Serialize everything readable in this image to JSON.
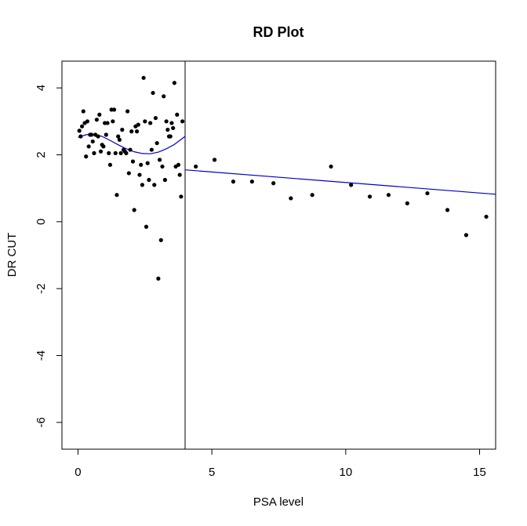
{
  "chart_data": {
    "type": "scatter",
    "title": "RD Plot",
    "xlabel": "PSA level",
    "ylabel": "DR CUT",
    "xlim": [
      -0.6,
      15.6
    ],
    "ylim": [
      -6.8,
      4.8
    ],
    "xticks": [
      0,
      5,
      10,
      15
    ],
    "yticks": [
      4,
      2,
      0,
      -2,
      -4,
      -6
    ],
    "cutoff": 4,
    "grid": false,
    "colors": {
      "points": "#000000",
      "fit": "#0000cc",
      "cutoff_line": "#000000"
    },
    "points": [
      [
        0.05,
        2.72
      ],
      [
        0.1,
        2.55
      ],
      [
        0.15,
        2.85
      ],
      [
        0.2,
        3.3
      ],
      [
        0.25,
        2.95
      ],
      [
        0.3,
        1.95
      ],
      [
        0.35,
        3.0
      ],
      [
        0.4,
        2.25
      ],
      [
        0.45,
        2.6
      ],
      [
        0.5,
        2.6
      ],
      [
        0.55,
        2.4
      ],
      [
        0.6,
        2.05
      ],
      [
        0.65,
        2.6
      ],
      [
        0.7,
        3.05
      ],
      [
        0.75,
        2.55
      ],
      [
        0.8,
        3.2
      ],
      [
        0.85,
        2.1
      ],
      [
        0.9,
        2.3
      ],
      [
        0.95,
        2.25
      ],
      [
        1.0,
        2.95
      ],
      [
        1.05,
        2.6
      ],
      [
        1.1,
        2.95
      ],
      [
        1.15,
        2.05
      ],
      [
        1.2,
        1.7
      ],
      [
        1.25,
        3.35
      ],
      [
        1.3,
        3.0
      ],
      [
        1.35,
        3.35
      ],
      [
        1.4,
        2.05
      ],
      [
        1.45,
        0.8
      ],
      [
        1.5,
        2.55
      ],
      [
        1.55,
        2.45
      ],
      [
        1.6,
        2.05
      ],
      [
        1.65,
        2.75
      ],
      [
        1.7,
        2.15
      ],
      [
        1.75,
        2.1
      ],
      [
        1.8,
        2.05
      ],
      [
        1.85,
        3.3
      ],
      [
        1.9,
        1.45
      ],
      [
        1.95,
        2.15
      ],
      [
        2.0,
        2.7
      ],
      [
        2.05,
        1.8
      ],
      [
        2.1,
        0.35
      ],
      [
        2.15,
        2.85
      ],
      [
        2.2,
        2.7
      ],
      [
        2.25,
        2.9
      ],
      [
        2.3,
        1.4
      ],
      [
        2.35,
        1.7
      ],
      [
        2.4,
        1.1
      ],
      [
        2.45,
        4.3
      ],
      [
        2.5,
        3.0
      ],
      [
        2.55,
        -0.15
      ],
      [
        2.6,
        1.75
      ],
      [
        2.65,
        1.25
      ],
      [
        2.7,
        2.95
      ],
      [
        2.75,
        2.15
      ],
      [
        2.8,
        3.85
      ],
      [
        2.85,
        1.1
      ],
      [
        2.9,
        3.1
      ],
      [
        2.95,
        2.35
      ],
      [
        3.0,
        -1.7
      ],
      [
        3.05,
        1.85
      ],
      [
        3.1,
        -0.55
      ],
      [
        3.15,
        1.65
      ],
      [
        3.2,
        3.75
      ],
      [
        3.25,
        1.25
      ],
      [
        3.3,
        3.0
      ],
      [
        3.35,
        2.75
      ],
      [
        3.4,
        2.55
      ],
      [
        3.45,
        2.55
      ],
      [
        3.5,
        2.95
      ],
      [
        3.55,
        2.8
      ],
      [
        3.6,
        4.15
      ],
      [
        3.65,
        1.65
      ],
      [
        3.7,
        3.2
      ],
      [
        3.75,
        1.7
      ],
      [
        3.8,
        1.4
      ],
      [
        3.85,
        0.75
      ],
      [
        3.9,
        3.0
      ],
      [
        4.4,
        1.65
      ],
      [
        5.1,
        1.85
      ],
      [
        5.8,
        1.2
      ],
      [
        6.5,
        1.2
      ],
      [
        7.3,
        1.15
      ],
      [
        7.95,
        0.7
      ],
      [
        8.75,
        0.8
      ],
      [
        9.45,
        1.65
      ],
      [
        10.2,
        1.1
      ],
      [
        10.9,
        0.75
      ],
      [
        11.6,
        0.8
      ],
      [
        12.3,
        0.55
      ],
      [
        13.05,
        0.85
      ],
      [
        13.8,
        0.35
      ],
      [
        14.5,
        -0.4
      ],
      [
        15.25,
        0.15
      ]
    ],
    "fit_left": [
      [
        0.0,
        2.52
      ],
      [
        0.3,
        2.6
      ],
      [
        0.6,
        2.62
      ],
      [
        0.9,
        2.55
      ],
      [
        1.2,
        2.43
      ],
      [
        1.5,
        2.3
      ],
      [
        1.8,
        2.18
      ],
      [
        2.1,
        2.09
      ],
      [
        2.4,
        2.04
      ],
      [
        2.7,
        2.03
      ],
      [
        3.0,
        2.08
      ],
      [
        3.3,
        2.18
      ],
      [
        3.6,
        2.31
      ],
      [
        4.0,
        2.55
      ]
    ],
    "fit_right": [
      [
        4.0,
        1.55
      ],
      [
        15.6,
        0.82
      ]
    ]
  }
}
